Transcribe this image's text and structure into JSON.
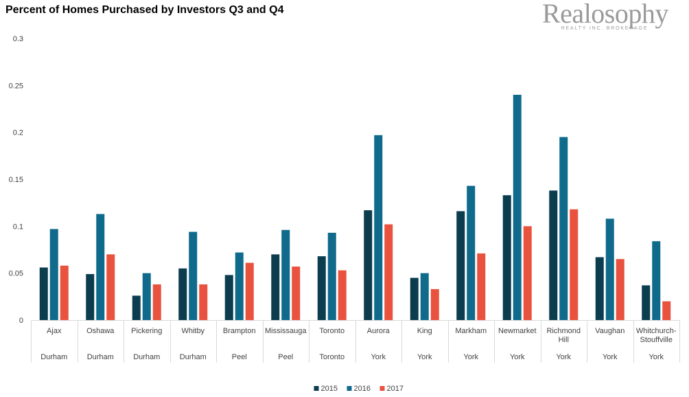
{
  "brand": {
    "name": "Realosophy",
    "subtitle": "REALTY INC. BROKERAGE",
    "color": "#9a9a9a"
  },
  "chart_data": {
    "type": "bar",
    "title": "Percent of Homes Purchased by Investors Q3 and Q4",
    "xlabel": "",
    "ylabel": "",
    "ylim": [
      0,
      0.3
    ],
    "yticks": [
      "0",
      "0.05",
      "0.1",
      "0.15",
      "0.2",
      "0.25",
      "0.3"
    ],
    "grid": false,
    "legend_position": "bottom-center",
    "categories": [
      [
        "Ajax"
      ],
      [
        "Oshawa"
      ],
      [
        "Pickering"
      ],
      [
        "Whitby"
      ],
      [
        "Brampton"
      ],
      [
        "Mississauga"
      ],
      [
        "Toronto"
      ],
      [
        "Aurora"
      ],
      [
        "King"
      ],
      [
        "Markham"
      ],
      [
        "Newmarket"
      ],
      [
        "Richmond",
        "Hill"
      ],
      [
        "Vaughan"
      ],
      [
        "Whitchurch-",
        "Stouffville"
      ]
    ],
    "regions": [
      "Durham",
      "Durham",
      "Durham",
      "Durham",
      "Peel",
      "Peel",
      "Toronto",
      "York",
      "York",
      "York",
      "York",
      "York",
      "York",
      "York"
    ],
    "series": [
      {
        "name": "2015",
        "color": "#0b3d4f",
        "values": [
          0.056,
          0.049,
          0.026,
          0.055,
          0.048,
          0.07,
          0.068,
          0.117,
          0.045,
          0.116,
          0.133,
          0.138,
          0.067,
          0.037
        ]
      },
      {
        "name": "2016",
        "color": "#0f6a8b",
        "values": [
          0.097,
          0.113,
          0.05,
          0.094,
          0.072,
          0.096,
          0.093,
          0.197,
          0.05,
          0.143,
          0.24,
          0.195,
          0.108,
          0.084
        ]
      },
      {
        "name": "2017",
        "color": "#e8523f",
        "values": [
          0.058,
          0.07,
          0.038,
          0.038,
          0.061,
          0.057,
          0.053,
          0.102,
          0.033,
          0.071,
          0.1,
          0.118,
          0.065,
          0.02
        ]
      }
    ]
  }
}
